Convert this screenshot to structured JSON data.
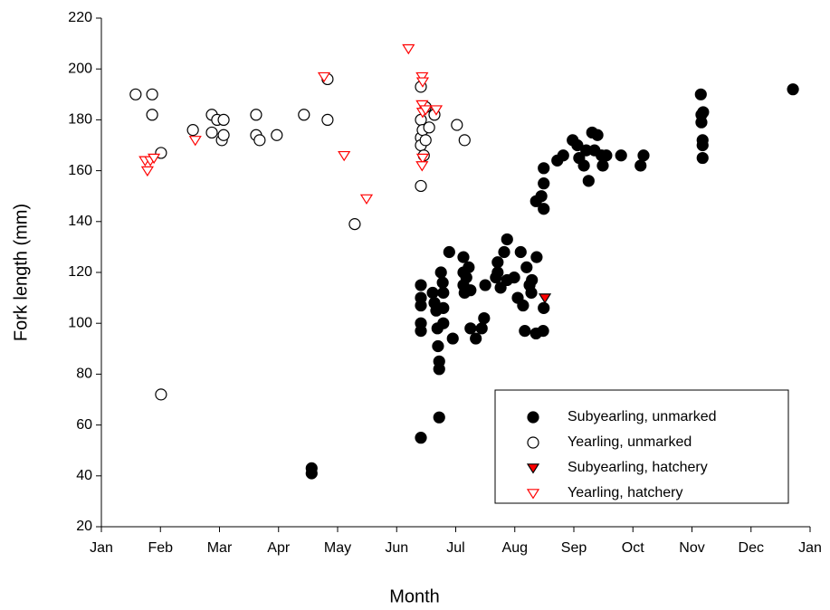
{
  "chart_data": {
    "type": "scatter",
    "xlabel": "Month",
    "ylabel": "Fork length (mm)",
    "xlim": [
      0,
      12
    ],
    "ylim": [
      20,
      220
    ],
    "xticks": [
      {
        "value": 0,
        "label": "Jan"
      },
      {
        "value": 1,
        "label": "Feb"
      },
      {
        "value": 2,
        "label": "Mar"
      },
      {
        "value": 3,
        "label": "Apr"
      },
      {
        "value": 4,
        "label": "May"
      },
      {
        "value": 5,
        "label": "Jun"
      },
      {
        "value": 6,
        "label": "Jul"
      },
      {
        "value": 7,
        "label": "Aug"
      },
      {
        "value": 8,
        "label": "Sep"
      },
      {
        "value": 9,
        "label": "Oct"
      },
      {
        "value": 10,
        "label": "Nov"
      },
      {
        "value": 11,
        "label": "Dec"
      },
      {
        "value": 12,
        "label": "Jan"
      }
    ],
    "yticks": [
      20,
      40,
      60,
      80,
      100,
      120,
      140,
      160,
      180,
      200,
      220
    ],
    "legend": "lower right",
    "series": [
      {
        "name": "Subyearling, unmarked",
        "marker": "circle",
        "color": "#000000",
        "edgecolor": "#000000",
        "x": [
          3.56,
          3.56,
          5.41,
          5.41,
          5.41,
          5.41,
          5.41,
          5.41,
          5.61,
          5.64,
          5.67,
          5.69,
          5.7,
          5.72,
          5.72,
          5.72,
          5.75,
          5.78,
          5.79,
          5.79,
          5.79,
          5.89,
          5.95,
          6.13,
          6.13,
          6.13,
          6.15,
          6.18,
          6.22,
          6.25,
          6.25,
          6.34,
          6.44,
          6.48,
          6.5,
          6.68,
          6.71,
          6.71,
          6.76,
          6.82,
          6.87,
          6.87,
          6.99,
          7.05,
          7.1,
          7.14,
          7.17,
          7.2,
          7.25,
          7.28,
          7.29,
          7.36,
          7.37,
          7.48,
          7.49,
          7.36,
          7.45,
          7.49,
          7.49,
          7.49,
          7.72,
          7.82,
          7.98,
          8.06,
          8.09,
          8.17,
          8.21,
          8.25,
          8.31,
          8.35,
          8.4,
          8.47,
          8.49,
          8.55,
          8.8,
          9.13,
          9.18,
          10.15,
          10.16,
          10.16,
          10.19,
          10.18,
          10.18,
          10.18,
          11.71
        ],
        "values": [
          43,
          41,
          115,
          110,
          107,
          100,
          97,
          55,
          112,
          108,
          105,
          98,
          91,
          85,
          82,
          63,
          120,
          116,
          112,
          106,
          100,
          128,
          94,
          126,
          120,
          115,
          112,
          118,
          122,
          113,
          98,
          94,
          98,
          102,
          115,
          118,
          124,
          120,
          114,
          128,
          133,
          117,
          118,
          110,
          128,
          107,
          97,
          122,
          115,
          112,
          117,
          96,
          126,
          97,
          106,
          148,
          150,
          145,
          155,
          161,
          164,
          166,
          172,
          170,
          165,
          162,
          168,
          156,
          175,
          168,
          174,
          166,
          162,
          166,
          166,
          162,
          166,
          190,
          182,
          179,
          183,
          172,
          170,
          165,
          192
        ]
      },
      {
        "name": "Yearling, unmarked",
        "marker": "circle",
        "color": "#ffffff",
        "edgecolor": "#000000",
        "x": [
          0.58,
          0.86,
          0.86,
          1.01,
          1.01,
          1.55,
          1.87,
          1.87,
          1.96,
          2.04,
          2.07,
          2.07,
          2.62,
          2.62,
          2.68,
          2.97,
          3.43,
          3.83,
          3.83,
          4.29,
          5.41,
          5.41,
          5.41,
          5.41,
          5.41,
          5.44,
          5.46,
          5.49,
          5.49,
          5.55,
          5.64,
          6.02,
          6.15
        ],
        "values": [
          190,
          190,
          182,
          167,
          72,
          176,
          182,
          175,
          180,
          172,
          180,
          174,
          182,
          174,
          172,
          174,
          182,
          196,
          180,
          139,
          193,
          180,
          173,
          170,
          154,
          176,
          166,
          185,
          172,
          177,
          182,
          178,
          172
        ]
      },
      {
        "name": "Subyearling, hatchery",
        "marker": "triangle-down",
        "color": "#ff0000",
        "edgecolor": "#000000",
        "x": [
          7.51
        ],
        "values": [
          110
        ]
      },
      {
        "name": "Yearling, hatchery",
        "marker": "triangle-down",
        "color": "#ffffff",
        "edgecolor": "#ff0000",
        "x": [
          0.74,
          0.78,
          0.83,
          0.89,
          1.59,
          3.77,
          4.11,
          4.49,
          5.2,
          5.43,
          5.44,
          5.43,
          5.44,
          5.44,
          5.43,
          5.49,
          5.67
        ],
        "values": [
          164,
          160,
          164,
          165,
          172,
          197,
          166,
          149,
          208,
          197,
          195,
          186,
          183,
          165,
          162,
          184,
          184
        ]
      }
    ]
  }
}
